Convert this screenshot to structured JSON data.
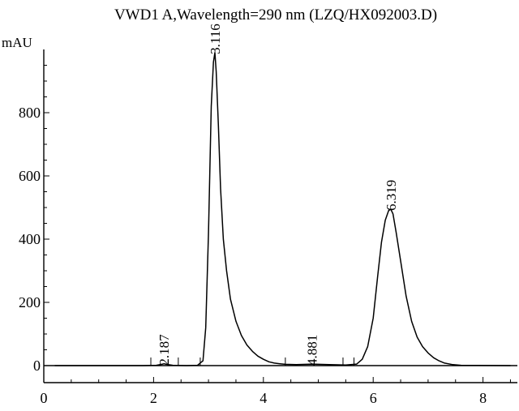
{
  "chart_data": {
    "type": "line",
    "title": "VWD1 A,Wavelength=290 nm (LZQ/HX092003.D)",
    "xlabel": "",
    "ylabel": "mAU",
    "xlim": [
      0,
      8.6
    ],
    "ylim": [
      -20,
      1000
    ],
    "x_ticks": [
      0,
      2,
      4,
      6,
      8
    ],
    "y_ticks": [
      0,
      200,
      400,
      600,
      800
    ],
    "grid": false,
    "series": [
      {
        "x": [
          0.2,
          1.8,
          2.05,
          2.15,
          2.19,
          2.23,
          2.35,
          2.6,
          2.8,
          2.9,
          2.95,
          3.0,
          3.05,
          3.09,
          3.116,
          3.14,
          3.18,
          3.22,
          3.27,
          3.33,
          3.4,
          3.5,
          3.6,
          3.7,
          3.8,
          3.9,
          4.0,
          4.1,
          4.2,
          4.3,
          4.4,
          4.6,
          4.881,
          5.2,
          5.5,
          5.7,
          5.8,
          5.9,
          6.0,
          6.08,
          6.15,
          6.22,
          6.28,
          6.319,
          6.36,
          6.42,
          6.5,
          6.6,
          6.7,
          6.8,
          6.9,
          7.0,
          7.1,
          7.2,
          7.3,
          7.45,
          7.6,
          8.5
        ],
        "values": [
          0,
          0,
          1,
          4,
          6,
          4,
          1,
          0,
          1,
          15,
          120,
          420,
          820,
          960,
          990,
          930,
          760,
          560,
          400,
          300,
          210,
          140,
          95,
          65,
          45,
          30,
          20,
          12,
          8,
          6,
          4,
          3,
          5,
          3,
          2,
          5,
          20,
          60,
          150,
          280,
          390,
          460,
          490,
          495,
          480,
          420,
          330,
          220,
          140,
          90,
          60,
          40,
          25,
          15,
          8,
          3,
          1,
          0
        ]
      }
    ],
    "peak_labels": [
      {
        "x": 2.187,
        "y": 6,
        "text": "2.187"
      },
      {
        "x": 3.116,
        "y": 990,
        "text": "3.116"
      },
      {
        "x": 4.881,
        "y": 5,
        "text": "4.881"
      },
      {
        "x": 6.319,
        "y": 495,
        "text": "6.319"
      }
    ],
    "line_color": "#000000"
  }
}
